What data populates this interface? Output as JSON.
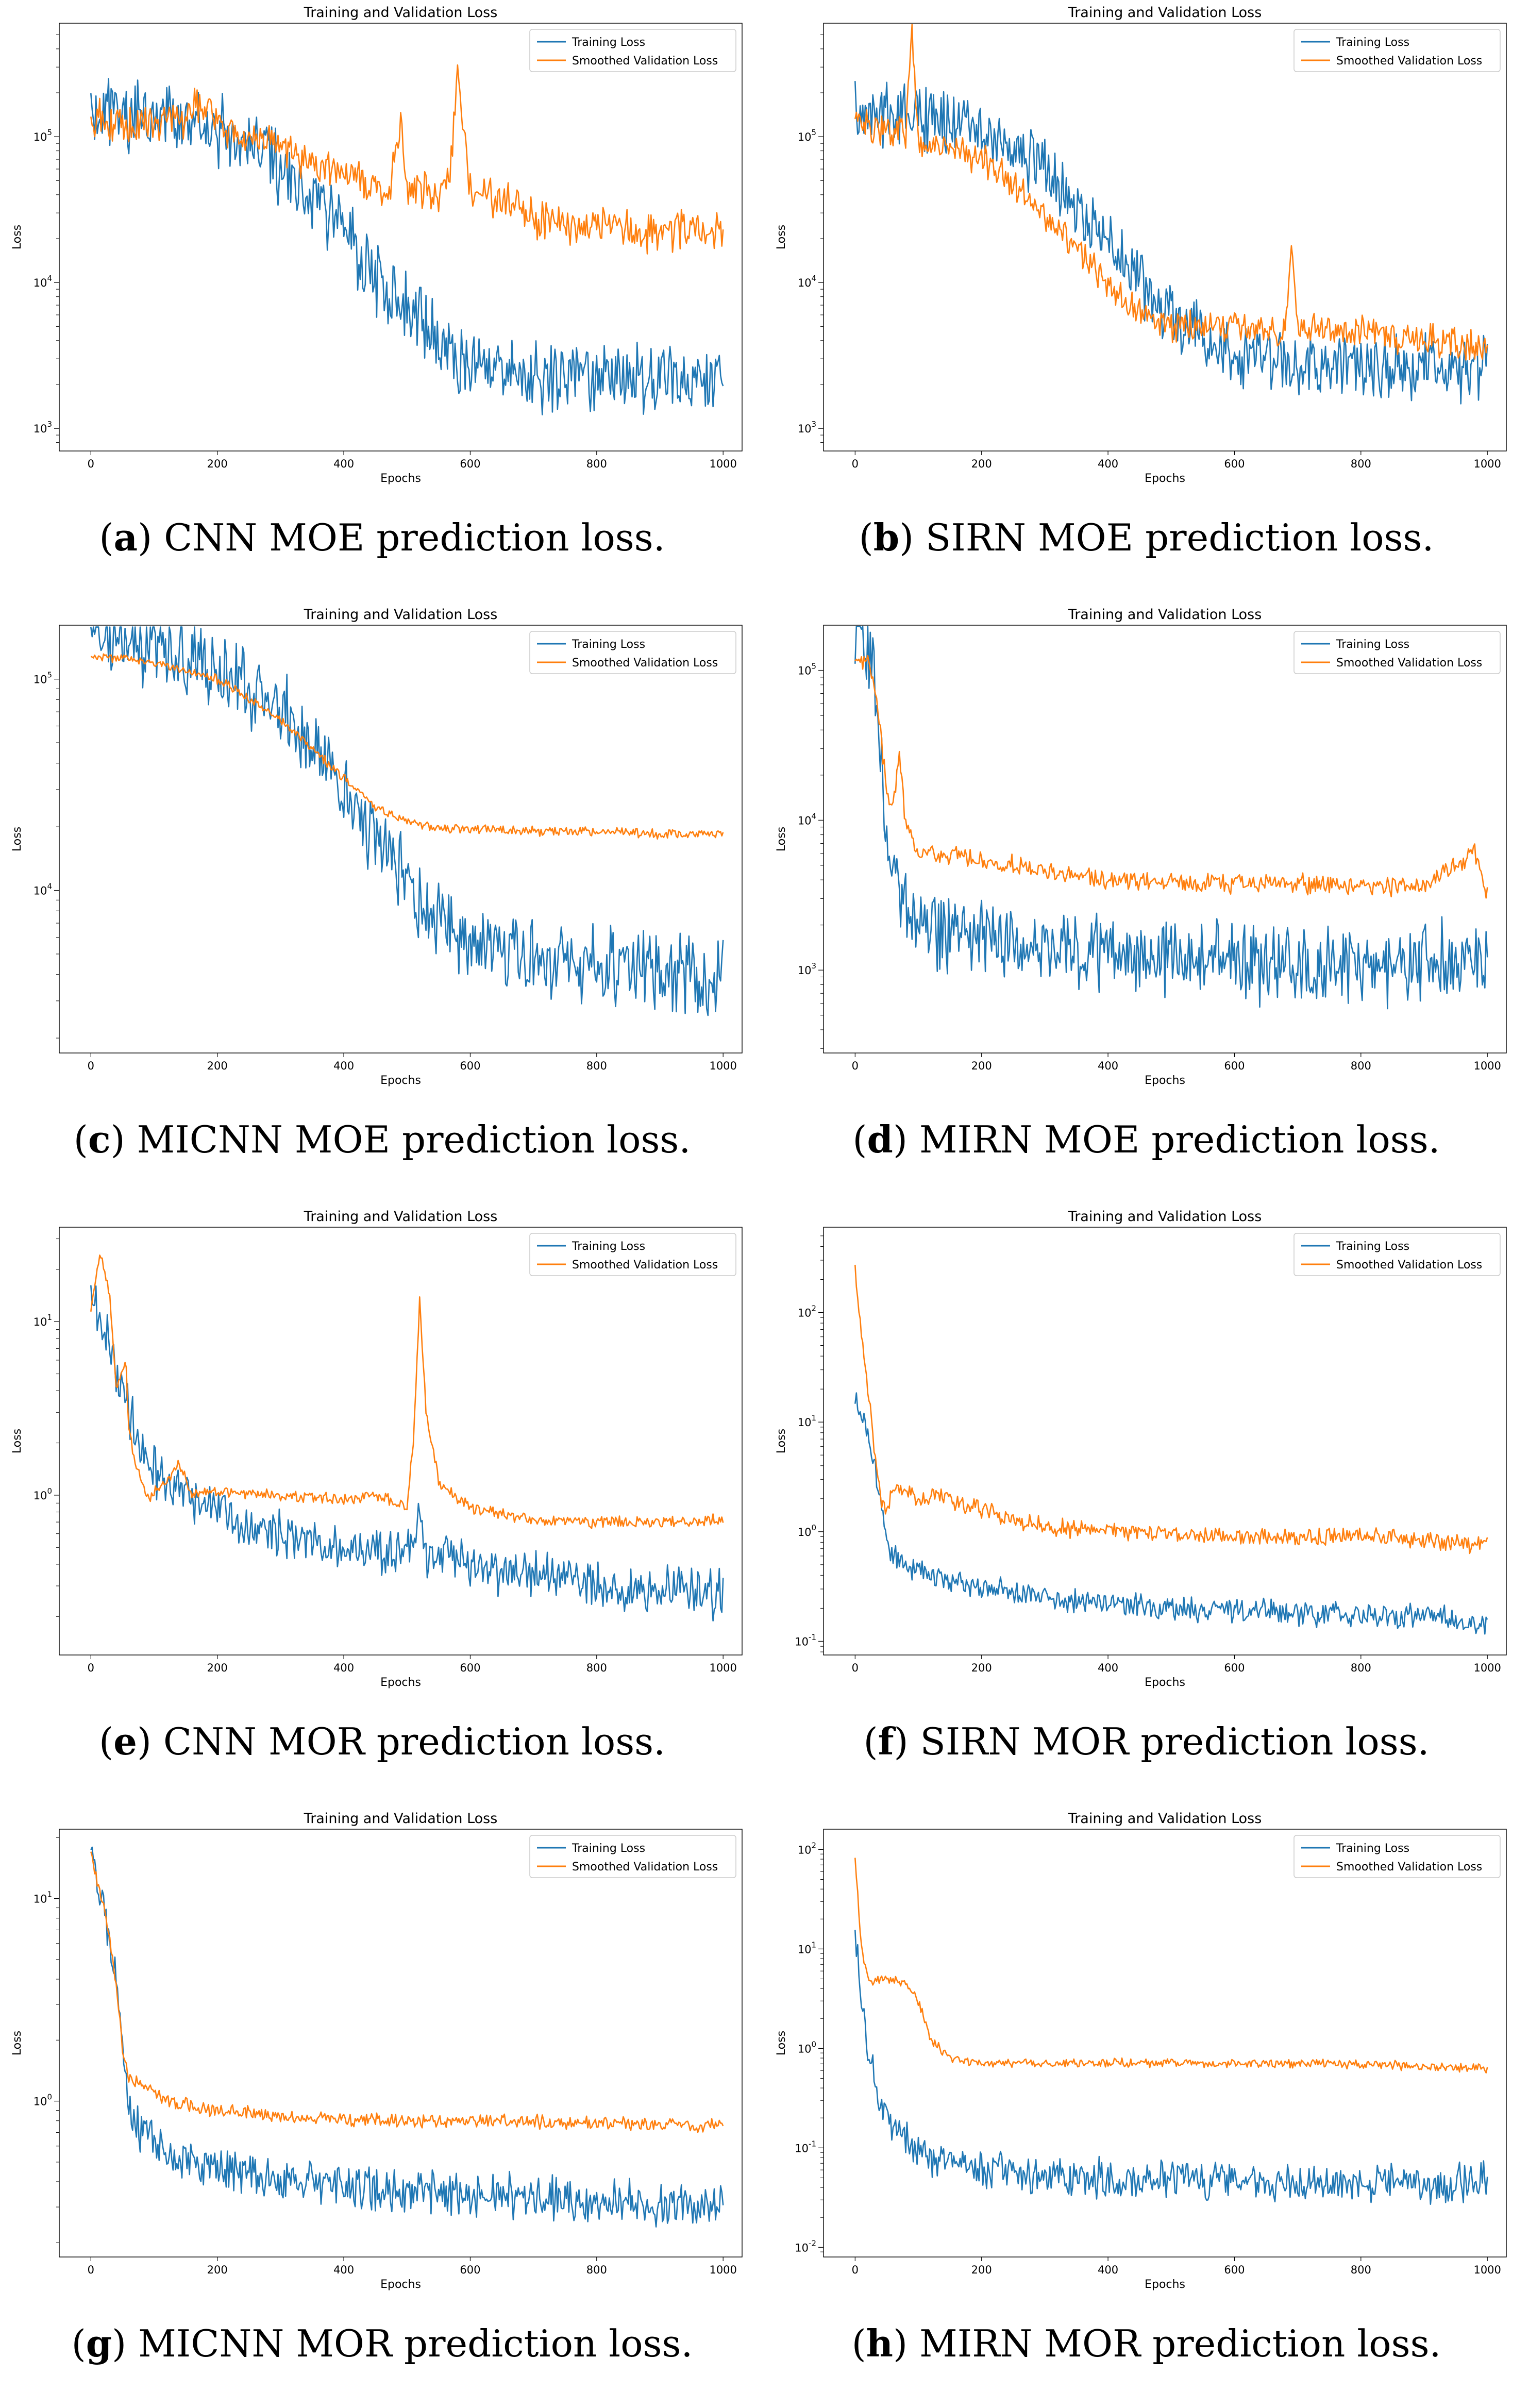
{
  "colors": {
    "training": "#1f77b4",
    "validation": "#ff7f0e"
  },
  "chart_data": [
    {
      "id": "a",
      "type": "line",
      "title": "Training and Validation Loss",
      "xlabel": "Epochs",
      "ylabel": "Loss",
      "yscale": "log",
      "xlim": [
        -50,
        1030
      ],
      "ylim": [
        700,
        600000
      ],
      "xticks": [
        0,
        200,
        400,
        600,
        800,
        1000
      ],
      "xtick_labels": [
        "0",
        "200",
        "400",
        "600",
        "800",
        "1000"
      ],
      "yticks": [
        1000,
        10000,
        100000
      ],
      "ytick_labels": [
        "10^3",
        "10^4",
        "10^5"
      ],
      "legend": [
        "Training Loss",
        "Smoothed Validation Loss"
      ],
      "legend_position": "top-right",
      "caption": {
        "letter": "a",
        "text": "CNN MOE prediction loss."
      },
      "series": [
        {
          "name": "Training Loss",
          "x": [
            0,
            100,
            200,
            300,
            350,
            400,
            450,
            500,
            550,
            600,
            650,
            700,
            800,
            900,
            1000
          ],
          "values": [
            150000,
            140000,
            110000,
            60000,
            38000,
            22000,
            11000,
            6500,
            4000,
            2800,
            2400,
            2300,
            2200,
            2200,
            2200
          ],
          "noise": 0.45
        },
        {
          "name": "Smoothed Validation Loss",
          "x": [
            0,
            50,
            100,
            150,
            165,
            200,
            300,
            400,
            470,
            490,
            500,
            550,
            570,
            580,
            600,
            700,
            800,
            900,
            1000
          ],
          "values": [
            140000,
            120000,
            120000,
            130000,
            180000,
            130000,
            80000,
            55000,
            40000,
            110000,
            45000,
            38000,
            70000,
            280000,
            45000,
            28000,
            24000,
            22000,
            22000
          ],
          "noise": 0.25
        }
      ]
    },
    {
      "id": "b",
      "type": "line",
      "title": "Training and Validation Loss",
      "xlabel": "Epochs",
      "ylabel": "Loss",
      "yscale": "log",
      "xlim": [
        -50,
        1030
      ],
      "ylim": [
        700,
        600000
      ],
      "xticks": [
        0,
        200,
        400,
        600,
        800,
        1000
      ],
      "xtick_labels": [
        "0",
        "200",
        "400",
        "600",
        "800",
        "1000"
      ],
      "yticks": [
        1000,
        10000,
        100000
      ],
      "ytick_labels": [
        "10^3",
        "10^4",
        "10^5"
      ],
      "legend": [
        "Training Loss",
        "Smoothed Validation Loss"
      ],
      "legend_position": "top-right",
      "caption": {
        "letter": "b",
        "text": "SIRN MOE prediction loss."
      },
      "series": [
        {
          "name": "Training Loss",
          "x": [
            0,
            100,
            200,
            300,
            400,
            450,
            500,
            550,
            600,
            700,
            800,
            900,
            1000
          ],
          "values": [
            150000,
            140000,
            110000,
            60000,
            20000,
            10000,
            6000,
            4500,
            3200,
            2700,
            2600,
            2600,
            2600
          ],
          "noise": 0.4
        },
        {
          "name": "Smoothed Validation Loss",
          "x": [
            0,
            80,
            90,
            100,
            200,
            300,
            400,
            450,
            500,
            600,
            680,
            690,
            700,
            800,
            900,
            1000
          ],
          "values": [
            120000,
            110000,
            480000,
            95000,
            70000,
            30000,
            10000,
            6000,
            5000,
            5000,
            4500,
            16000,
            5000,
            4500,
            4000,
            3800
          ],
          "noise": 0.2
        }
      ]
    },
    {
      "id": "c",
      "type": "line",
      "title": "Training and Validation Loss",
      "xlabel": "Epochs",
      "ylabel": "Loss",
      "yscale": "log",
      "xlim": [
        -50,
        1030
      ],
      "ylim": [
        1700,
        180000
      ],
      "xticks": [
        0,
        200,
        400,
        600,
        800,
        1000
      ],
      "xtick_labels": [
        "0",
        "200",
        "400",
        "600",
        "800",
        "1000"
      ],
      "yticks": [
        10000,
        100000
      ],
      "ytick_labels": [
        "10^4",
        "10^5"
      ],
      "legend": [
        "Training Loss",
        "Smoothed Validation Loss"
      ],
      "legend_position": "top-right",
      "caption": {
        "letter": "c",
        "text": "MICNN MOE prediction loss."
      },
      "series": [
        {
          "name": "Training Loss",
          "x": [
            0,
            100,
            200,
            300,
            350,
            400,
            450,
            500,
            550,
            600,
            700,
            800,
            900,
            1000
          ],
          "values": [
            150000,
            140000,
            110000,
            70000,
            48000,
            30000,
            18000,
            11000,
            7500,
            5500,
            4500,
            4300,
            4200,
            4200
          ],
          "noise": 0.35
        },
        {
          "name": "Smoothed Validation Loss",
          "x": [
            0,
            100,
            200,
            300,
            400,
            450,
            500,
            550,
            600,
            700,
            800,
            900,
            1000
          ],
          "values": [
            130000,
            120000,
            100000,
            65000,
            34000,
            25000,
            21000,
            20000,
            19500,
            19000,
            19000,
            18500,
            18500
          ],
          "noise": 0.04
        }
      ]
    },
    {
      "id": "d",
      "type": "line",
      "title": "Training and Validation Loss",
      "xlabel": "Epochs",
      "ylabel": "Loss",
      "yscale": "log",
      "xlim": [
        -50,
        1030
      ],
      "ylim": [
        280,
        200000
      ],
      "xticks": [
        0,
        200,
        400,
        600,
        800,
        1000
      ],
      "xtick_labels": [
        "0",
        "200",
        "400",
        "600",
        "800",
        "1000"
      ],
      "yticks": [
        1000,
        10000,
        100000
      ],
      "ytick_labels": [
        "10^3",
        "10^4",
        "10^5"
      ],
      "legend": [
        "Training Loss",
        "Smoothed Validation Loss"
      ],
      "legend_position": "top-right",
      "caption": {
        "letter": "d",
        "text": "MIRN MOE prediction loss."
      },
      "series": [
        {
          "name": "Training Loss",
          "x": [
            0,
            20,
            30,
            40,
            50,
            60,
            80,
            150,
            300,
            500,
            700,
            900,
            1000
          ],
          "values": [
            150000,
            140000,
            100000,
            30000,
            10000,
            4000,
            2500,
            1800,
            1400,
            1200,
            1100,
            1100,
            1100
          ],
          "noise": 0.5
        },
        {
          "name": "Smoothed Validation Loss",
          "x": [
            0,
            20,
            30,
            40,
            50,
            60,
            70,
            80,
            100,
            200,
            300,
            400,
            500,
            600,
            700,
            800,
            900,
            980,
            1000
          ],
          "values": [
            120000,
            115000,
            90000,
            40000,
            15000,
            12000,
            28000,
            9000,
            6000,
            5500,
            4500,
            4000,
            3900,
            3800,
            3800,
            3700,
            3600,
            6000,
            3200
          ],
          "noise": 0.12
        }
      ]
    },
    {
      "id": "e",
      "type": "line",
      "title": "Training and Validation Loss",
      "xlabel": "Epochs",
      "ylabel": "Loss",
      "yscale": "log",
      "xlim": [
        -50,
        1030
      ],
      "ylim": [
        0.12,
        35
      ],
      "xticks": [
        0,
        200,
        400,
        600,
        800,
        1000
      ],
      "xtick_labels": [
        "0",
        "200",
        "400",
        "600",
        "800",
        "1000"
      ],
      "yticks": [
        1,
        10
      ],
      "ytick_labels": [
        "10^0",
        "10^1"
      ],
      "legend": [
        "Training Loss",
        "Smoothed Validation Loss"
      ],
      "legend_position": "top-right",
      "caption": {
        "letter": "e",
        "text": "CNN MOR prediction loss."
      },
      "series": [
        {
          "name": "Training Loss",
          "x": [
            0,
            20,
            50,
            80,
            120,
            200,
            300,
            400,
            500,
            520,
            530,
            600,
            700,
            800,
            900,
            1000
          ],
          "values": [
            16,
            10,
            4,
            1.8,
            1.1,
            0.8,
            0.6,
            0.5,
            0.45,
            0.7,
            0.45,
            0.4,
            0.35,
            0.3,
            0.28,
            0.27
          ],
          "noise": 0.25
        },
        {
          "name": "Smoothed Validation Loss",
          "x": [
            0,
            15,
            30,
            40,
            55,
            60,
            70,
            90,
            120,
            140,
            160,
            200,
            300,
            400,
            450,
            500,
            510,
            520,
            530,
            550,
            600,
            700,
            800,
            900,
            1000
          ],
          "values": [
            12,
            25,
            14,
            4,
            6,
            2.5,
            1.5,
            0.95,
            1.2,
            1.5,
            1.0,
            1.05,
            1.0,
            0.95,
            1.0,
            0.85,
            2,
            13,
            3,
            1.2,
            0.85,
            0.72,
            0.7,
            0.7,
            0.72
          ],
          "noise": 0.06
        }
      ]
    },
    {
      "id": "f",
      "type": "line",
      "title": "Training and Validation Loss",
      "xlabel": "Epochs",
      "ylabel": "Loss",
      "yscale": "log",
      "xlim": [
        -50,
        1030
      ],
      "ylim": [
        0.075,
        600
      ],
      "xticks": [
        0,
        200,
        400,
        600,
        800,
        1000
      ],
      "xtick_labels": [
        "0",
        "200",
        "400",
        "600",
        "800",
        "1000"
      ],
      "yticks": [
        0.1,
        1,
        10,
        100
      ],
      "ytick_labels": [
        "10^-1",
        "10^0",
        "10^1",
        "10^2"
      ],
      "legend": [
        "Training Loss",
        "Smoothed Validation Loss"
      ],
      "legend_position": "top-right",
      "caption": {
        "letter": "f",
        "text": "SIRN MOR prediction loss."
      },
      "series": [
        {
          "name": "Training Loss",
          "x": [
            0,
            20,
            40,
            50,
            60,
            80,
            150,
            300,
            500,
            700,
            900,
            1000
          ],
          "values": [
            16,
            8,
            2,
            0.9,
            0.6,
            0.5,
            0.35,
            0.25,
            0.2,
            0.18,
            0.17,
            0.15
          ],
          "noise": 0.2
        },
        {
          "name": "Smoothed Validation Loss",
          "x": [
            0,
            10,
            20,
            30,
            40,
            50,
            60,
            100,
            150,
            200,
            250,
            300,
            400,
            500,
            600,
            700,
            800,
            900,
            1000
          ],
          "values": [
            250,
            60,
            20,
            6,
            2,
            1.5,
            2.5,
            2.0,
            2.0,
            1.6,
            1.3,
            1.1,
            1.0,
            0.95,
            0.9,
            0.9,
            0.9,
            0.85,
            0.75
          ],
          "noise": 0.15
        }
      ]
    },
    {
      "id": "g",
      "type": "line",
      "title": "Training and Validation Loss",
      "xlabel": "Epochs",
      "ylabel": "Loss",
      "yscale": "log",
      "xlim": [
        -50,
        1030
      ],
      "ylim": [
        0.17,
        22
      ],
      "xticks": [
        0,
        200,
        400,
        600,
        800,
        1000
      ],
      "xtick_labels": [
        "0",
        "200",
        "400",
        "600",
        "800",
        "1000"
      ],
      "yticks": [
        1,
        10
      ],
      "ytick_labels": [
        "10^0",
        "10^1"
      ],
      "legend": [
        "Training Loss",
        "Smoothed Validation Loss"
      ],
      "legend_position": "top-right",
      "caption": {
        "letter": "g",
        "text": "MICNN MOR prediction loss."
      },
      "series": [
        {
          "name": "Training Loss",
          "x": [
            0,
            20,
            40,
            50,
            60,
            80,
            120,
            200,
            300,
            400,
            600,
            800,
            1000
          ],
          "values": [
            17,
            9,
            4,
            1.8,
            0.9,
            0.7,
            0.55,
            0.45,
            0.4,
            0.38,
            0.35,
            0.32,
            0.3
          ],
          "noise": 0.2
        },
        {
          "name": "Smoothed Validation Loss",
          "x": [
            0,
            20,
            40,
            50,
            60,
            80,
            120,
            200,
            300,
            400,
            600,
            800,
            1000
          ],
          "values": [
            16,
            9,
            4,
            1.8,
            1.3,
            1.2,
            1.0,
            0.9,
            0.85,
            0.8,
            0.8,
            0.78,
            0.75
          ],
          "noise": 0.06
        }
      ]
    },
    {
      "id": "h",
      "type": "line",
      "title": "Training and Validation Loss",
      "xlabel": "Epochs",
      "ylabel": "Loss",
      "yscale": "log",
      "xlim": [
        -50,
        1030
      ],
      "ylim": [
        0.008,
        160
      ],
      "xticks": [
        0,
        200,
        400,
        600,
        800,
        1000
      ],
      "xtick_labels": [
        "0",
        "200",
        "400",
        "600",
        "800",
        "1000"
      ],
      "yticks": [
        0.01,
        0.1,
        1,
        10,
        100
      ],
      "ytick_labels": [
        "10^-2",
        "10^-1",
        "10^0",
        "10^1",
        "10^2"
      ],
      "legend": [
        "Training Loss",
        "Smoothed Validation Loss"
      ],
      "legend_position": "top-right",
      "caption": {
        "letter": "h",
        "text": "MIRN MOR prediction loss."
      },
      "series": [
        {
          "name": "Training Loss",
          "x": [
            0,
            10,
            20,
            40,
            60,
            100,
            150,
            200,
            400,
            600,
            800,
            1000
          ],
          "values": [
            15,
            3,
            0.8,
            0.3,
            0.15,
            0.09,
            0.07,
            0.06,
            0.05,
            0.045,
            0.045,
            0.045
          ],
          "noise": 0.35
        },
        {
          "name": "Smoothed Validation Loss",
          "x": [
            0,
            10,
            20,
            30,
            50,
            80,
            100,
            120,
            150,
            200,
            400,
            600,
            800,
            1000
          ],
          "values": [
            85,
            10,
            5,
            4.8,
            5,
            4.5,
            3,
            1.2,
            0.8,
            0.7,
            0.72,
            0.7,
            0.7,
            0.62
          ],
          "noise": 0.08
        }
      ]
    }
  ]
}
